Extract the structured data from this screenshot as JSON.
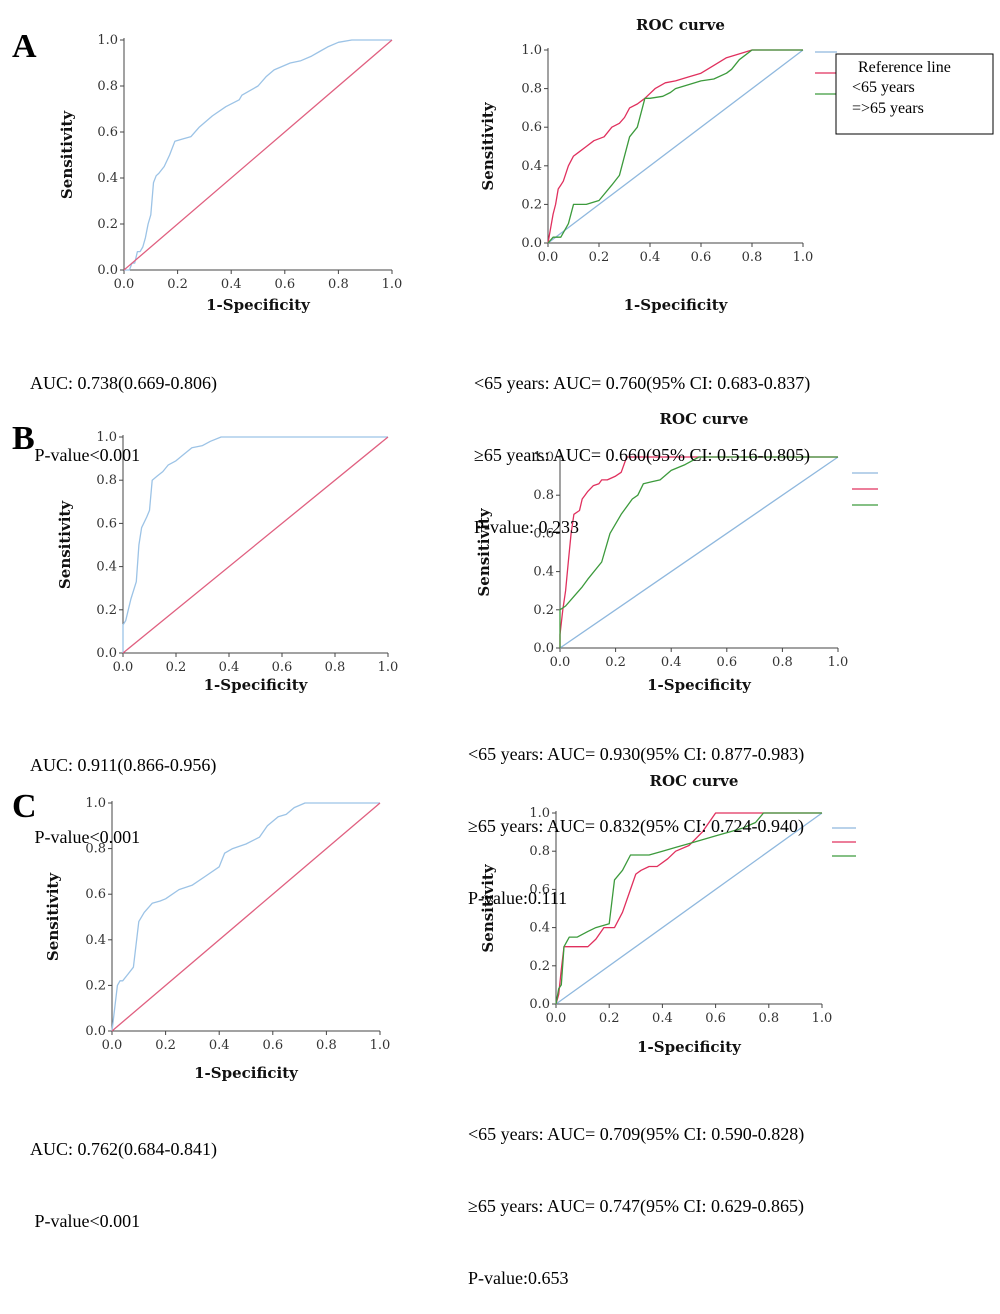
{
  "panels": [
    {
      "letter": "A"
    },
    {
      "letter": "B"
    },
    {
      "letter": "C"
    }
  ],
  "stats": {
    "A_left": [
      "AUC: 0.738(0.669-0.806)",
      " P-value<0.001"
    ],
    "A_right": [
      "<65 years: AUC= 0.760(95% CI: 0.683-0.837)",
      "≥65 years: AUC= 0.660(95% CI: 0.516-0.805)",
      "P-value: 0.233"
    ],
    "B_left": [
      "AUC: 0.911(0.866-0.956)",
      " P-value<0.001"
    ],
    "B_right": [
      "<65 years: AUC= 0.930(95% CI: 0.877-0.983)",
      "≥65 years: AUC= 0.832(95% CI: 0.724-0.940)",
      "P-value:0.111"
    ],
    "C_left": [
      "AUC: 0.762(0.684-0.841)",
      " P-value<0.001"
    ],
    "C_right": [
      "<65 years: AUC= 0.709(95% CI: 0.590-0.828)",
      "≥65 years: AUC= 0.747(95% CI: 0.629-0.865)",
      "P-value:0.653"
    ]
  },
  "colors": {
    "reference": "#8fb8de",
    "under65": "#e0305e",
    "over65": "#3c9a3c",
    "overall": "#9cc3e6",
    "diagonal": "#e06080"
  },
  "chart_data": [
    {
      "id": "A_left",
      "type": "line",
      "title": "",
      "xlabel": "1-Specificity",
      "ylabel": "Sensitivity",
      "xlim": [
        0,
        1
      ],
      "ylim": [
        0,
        1
      ],
      "xticks": [
        "0.0",
        "0.2",
        "0.4",
        "0.6",
        "0.8",
        "1.0"
      ],
      "yticks": [
        "0.0",
        "0.2",
        "0.4",
        "0.6",
        "0.8",
        "1.0"
      ],
      "legend": null,
      "series": [
        {
          "key": "overall",
          "x": [
            0,
            0.02,
            0.03,
            0.04,
            0.05,
            0.06,
            0.07,
            0.08,
            0.09,
            0.1,
            0.11,
            0.12,
            0.13,
            0.15,
            0.17,
            0.19,
            0.22,
            0.25,
            0.28,
            0.33,
            0.38,
            0.43,
            0.44,
            0.47,
            0.5,
            0.53,
            0.56,
            0.58,
            0.62,
            0.66,
            0.7,
            0.73,
            0.76,
            0.8,
            0.85,
            0.9,
            1.0
          ],
          "y": [
            0,
            0,
            0.03,
            0.03,
            0.08,
            0.08,
            0.1,
            0.14,
            0.2,
            0.24,
            0.38,
            0.41,
            0.42,
            0.45,
            0.5,
            0.56,
            0.57,
            0.58,
            0.62,
            0.67,
            0.71,
            0.74,
            0.76,
            0.78,
            0.8,
            0.84,
            0.87,
            0.88,
            0.9,
            0.91,
            0.93,
            0.95,
            0.97,
            0.99,
            1.0,
            1.0,
            1.0
          ]
        },
        {
          "key": "diagonal",
          "x": [
            0,
            1
          ],
          "y": [
            0,
            1
          ]
        }
      ]
    },
    {
      "id": "A_right",
      "type": "line",
      "title": "ROC curve",
      "xlabel": "1-Specificity",
      "ylabel": "Sensitivity",
      "xlim": [
        0,
        1
      ],
      "ylim": [
        0,
        1
      ],
      "xticks": [
        "0.0",
        "0.2",
        "0.4",
        "0.6",
        "0.8",
        "1.0"
      ],
      "yticks": [
        "0.0",
        "0.2",
        "0.4",
        "0.6",
        "0.8",
        "1.0"
      ],
      "legend": {
        "entries": [
          "Reference line",
          "<65 years",
          "=>65 years"
        ],
        "boxed": true
      },
      "series": [
        {
          "key": "reference",
          "x": [
            0,
            1
          ],
          "y": [
            0,
            1
          ]
        },
        {
          "key": "under65",
          "x": [
            0,
            0.02,
            0.03,
            0.04,
            0.05,
            0.06,
            0.08,
            0.1,
            0.12,
            0.15,
            0.18,
            0.22,
            0.25,
            0.28,
            0.3,
            0.32,
            0.35,
            0.38,
            0.42,
            0.46,
            0.5,
            0.55,
            0.6,
            0.65,
            0.7,
            0.75,
            0.8,
            1.0
          ],
          "y": [
            0,
            0.15,
            0.2,
            0.28,
            0.3,
            0.32,
            0.4,
            0.45,
            0.47,
            0.5,
            0.53,
            0.55,
            0.6,
            0.62,
            0.65,
            0.7,
            0.72,
            0.75,
            0.8,
            0.83,
            0.84,
            0.86,
            0.88,
            0.92,
            0.96,
            0.98,
            1.0,
            1.0
          ]
        },
        {
          "key": "over65",
          "x": [
            0,
            0.02,
            0.05,
            0.08,
            0.1,
            0.15,
            0.2,
            0.25,
            0.28,
            0.3,
            0.32,
            0.35,
            0.38,
            0.4,
            0.45,
            0.48,
            0.5,
            0.55,
            0.6,
            0.65,
            0.7,
            0.72,
            0.75,
            0.8,
            1.0
          ],
          "y": [
            0,
            0.03,
            0.03,
            0.1,
            0.2,
            0.2,
            0.22,
            0.3,
            0.35,
            0.45,
            0.55,
            0.6,
            0.75,
            0.75,
            0.76,
            0.78,
            0.8,
            0.82,
            0.84,
            0.85,
            0.88,
            0.9,
            0.95,
            1.0,
            1.0
          ]
        }
      ]
    },
    {
      "id": "B_left",
      "type": "line",
      "title": "",
      "xlabel": "1-Specificity",
      "ylabel": "Sensitivity",
      "xlim": [
        0,
        1
      ],
      "ylim": [
        0,
        1
      ],
      "xticks": [
        "0.0",
        "0.2",
        "0.4",
        "0.6",
        "0.8",
        "1.0"
      ],
      "yticks": [
        "0.0",
        "0.2",
        "0.4",
        "0.6",
        "0.8",
        "1.0"
      ],
      "legend": null,
      "series": [
        {
          "key": "overall",
          "x": [
            0,
            0.0,
            0.01,
            0.03,
            0.05,
            0.06,
            0.07,
            0.09,
            0.1,
            0.11,
            0.13,
            0.15,
            0.17,
            0.2,
            0.23,
            0.26,
            0.3,
            0.33,
            0.37,
            0.4,
            0.5,
            1.0
          ],
          "y": [
            0,
            0.13,
            0.15,
            0.25,
            0.33,
            0.5,
            0.58,
            0.63,
            0.66,
            0.8,
            0.82,
            0.84,
            0.87,
            0.89,
            0.92,
            0.95,
            0.96,
            0.98,
            1.0,
            1.0,
            1.0,
            1.0
          ]
        },
        {
          "key": "diagonal",
          "x": [
            0,
            1
          ],
          "y": [
            0,
            1
          ]
        }
      ]
    },
    {
      "id": "B_right",
      "type": "line",
      "title": "ROC curve",
      "xlabel": "1-Specificity",
      "ylabel": "Sensitivity",
      "xlim": [
        0,
        1
      ],
      "ylim": [
        0,
        1
      ],
      "xticks": [
        "0.0",
        "0.2",
        "0.4",
        "0.6",
        "0.8",
        "1.0"
      ],
      "yticks": [
        "0.0",
        "0.2",
        "0.4",
        "0.6",
        "0.8",
        "1.0"
      ],
      "legend": {
        "entries": [],
        "boxed": false
      },
      "series": [
        {
          "key": "reference",
          "x": [
            0,
            1
          ],
          "y": [
            0,
            1
          ]
        },
        {
          "key": "under65",
          "x": [
            0,
            0.0,
            0.01,
            0.02,
            0.03,
            0.04,
            0.05,
            0.07,
            0.08,
            0.09,
            0.1,
            0.12,
            0.14,
            0.15,
            0.17,
            0.2,
            0.22,
            0.24,
            0.26,
            0.3,
            1.0
          ],
          "y": [
            0,
            0.07,
            0.2,
            0.3,
            0.45,
            0.6,
            0.7,
            0.72,
            0.78,
            0.8,
            0.82,
            0.85,
            0.86,
            0.88,
            0.88,
            0.9,
            0.92,
            1.0,
            1.0,
            1.0,
            1.0
          ]
        },
        {
          "key": "over65",
          "x": [
            0,
            0.0,
            0.02,
            0.05,
            0.08,
            0.1,
            0.15,
            0.18,
            0.22,
            0.26,
            0.28,
            0.3,
            0.33,
            0.36,
            0.4,
            0.45,
            0.5,
            0.6,
            1.0
          ],
          "y": [
            0,
            0.2,
            0.22,
            0.27,
            0.32,
            0.36,
            0.45,
            0.6,
            0.7,
            0.78,
            0.8,
            0.86,
            0.87,
            0.88,
            0.93,
            0.96,
            1.0,
            1.0,
            1.0
          ]
        }
      ]
    },
    {
      "id": "C_left",
      "type": "line",
      "title": "",
      "xlabel": "1-Specificity",
      "ylabel": "Sensitivity",
      "xlim": [
        0,
        1
      ],
      "ylim": [
        0,
        1
      ],
      "xticks": [
        "0.0",
        "0.2",
        "0.4",
        "0.6",
        "0.8",
        "1.0"
      ],
      "yticks": [
        "0.0",
        "0.2",
        "0.4",
        "0.6",
        "0.8",
        "1.0"
      ],
      "legend": null,
      "series": [
        {
          "key": "overall",
          "x": [
            0,
            0.01,
            0.02,
            0.03,
            0.04,
            0.06,
            0.08,
            0.1,
            0.12,
            0.15,
            0.18,
            0.2,
            0.25,
            0.3,
            0.35,
            0.4,
            0.42,
            0.45,
            0.5,
            0.55,
            0.58,
            0.62,
            0.65,
            0.68,
            0.72,
            0.8,
            1.0
          ],
          "y": [
            0,
            0.1,
            0.2,
            0.22,
            0.22,
            0.25,
            0.28,
            0.48,
            0.52,
            0.56,
            0.57,
            0.58,
            0.62,
            0.64,
            0.68,
            0.72,
            0.78,
            0.8,
            0.82,
            0.85,
            0.9,
            0.94,
            0.95,
            0.98,
            1.0,
            1.0,
            1.0
          ]
        },
        {
          "key": "diagonal",
          "x": [
            0,
            1
          ],
          "y": [
            0,
            1
          ]
        }
      ]
    },
    {
      "id": "C_right",
      "type": "line",
      "title": "ROC curve",
      "xlabel": "1-Specificity",
      "ylabel": "Sensitivity",
      "xlim": [
        0,
        1
      ],
      "ylim": [
        0,
        1
      ],
      "xticks": [
        "0.0",
        "0.2",
        "0.4",
        "0.6",
        "0.8",
        "1.0"
      ],
      "yticks": [
        "0.0",
        "0.2",
        "0.4",
        "0.6",
        "0.8",
        "1.0"
      ],
      "legend": {
        "entries": [],
        "boxed": false
      },
      "series": [
        {
          "key": "reference",
          "x": [
            0,
            1
          ],
          "y": [
            0,
            1
          ]
        },
        {
          "key": "under65",
          "x": [
            0,
            0.01,
            0.02,
            0.03,
            0.05,
            0.08,
            0.12,
            0.15,
            0.18,
            0.22,
            0.25,
            0.28,
            0.3,
            0.32,
            0.35,
            0.38,
            0.42,
            0.45,
            0.5,
            0.55,
            0.6,
            0.65,
            0.7,
            0.75,
            0.8,
            1.0
          ],
          "y": [
            0,
            0.05,
            0.18,
            0.3,
            0.3,
            0.3,
            0.3,
            0.34,
            0.4,
            0.4,
            0.48,
            0.6,
            0.68,
            0.7,
            0.72,
            0.72,
            0.76,
            0.8,
            0.83,
            0.9,
            1.0,
            1.0,
            1.0,
            1.0,
            1.0,
            1.0
          ]
        },
        {
          "key": "over65",
          "x": [
            0,
            0.01,
            0.02,
            0.03,
            0.05,
            0.08,
            0.12,
            0.15,
            0.2,
            0.22,
            0.25,
            0.28,
            0.3,
            0.35,
            0.4,
            0.45,
            0.5,
            0.55,
            0.6,
            0.65,
            0.7,
            0.75,
            0.78,
            0.8,
            1.0
          ],
          "y": [
            0,
            0.08,
            0.1,
            0.3,
            0.35,
            0.35,
            0.38,
            0.4,
            0.42,
            0.65,
            0.7,
            0.78,
            0.78,
            0.78,
            0.8,
            0.82,
            0.84,
            0.86,
            0.88,
            0.9,
            0.92,
            0.95,
            1.0,
            1.0,
            1.0
          ]
        }
      ]
    }
  ]
}
